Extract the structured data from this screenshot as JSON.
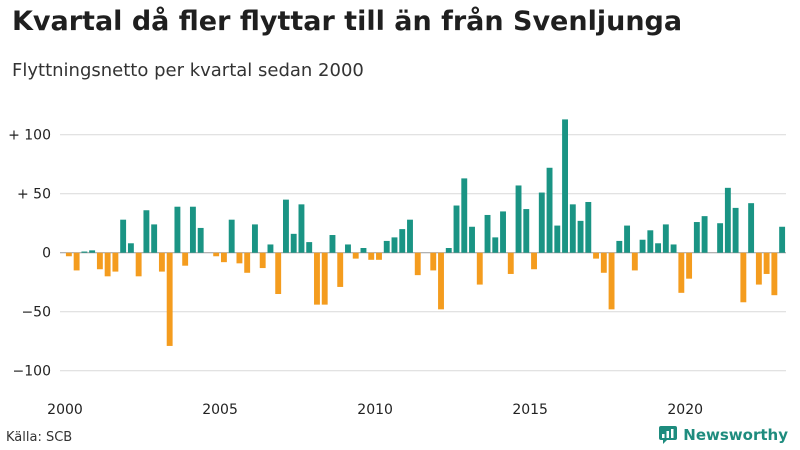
{
  "title": "Kvartal då fler flyttar till än från Svenljunga",
  "subtitle": "Flyttningsnetto per kvartal sedan 2000",
  "source": "Källa: SCB",
  "brand": {
    "name": "Newsworthy",
    "color": "#1e8c7e"
  },
  "colors": {
    "positive": "#1a9484",
    "negative": "#f49c1e",
    "grid": "#d9d9d9",
    "zero": "#999999"
  },
  "chart_data": {
    "type": "bar",
    "title": "Kvartal då fler flyttar till än från Svenljunga",
    "subtitle": "Flyttningsnetto per kvartal sedan 2000",
    "xlabel": "",
    "ylabel": "",
    "ylim": [
      -110,
      118
    ],
    "y_ticks": [
      {
        "value": 100,
        "label": "+ 100"
      },
      {
        "value": 50,
        "label": "+  50"
      },
      {
        "value": 0,
        "label": "0"
      },
      {
        "value": -50,
        "label": "−50"
      },
      {
        "value": -100,
        "label": "−100"
      }
    ],
    "x_ticks": [
      "2000",
      "2005",
      "2010",
      "2015",
      "2020"
    ],
    "grid": true,
    "legend": "none",
    "start": "2000 Q1",
    "values": [
      -3,
      -15,
      1,
      2,
      -14,
      -20,
      -16,
      28,
      8,
      -20,
      36,
      24,
      -16,
      -79,
      39,
      -11,
      39,
      21,
      0,
      -3,
      -8,
      28,
      -9,
      -17,
      24,
      -13,
      7,
      -35,
      45,
      16,
      41,
      9,
      -44,
      -44,
      15,
      -29,
      7,
      -5,
      4,
      -6,
      -6,
      10,
      13,
      20,
      28,
      -19,
      0,
      -15,
      -48,
      4,
      40,
      63,
      22,
      -27,
      32,
      13,
      35,
      -18,
      57,
      37,
      -14,
      51,
      72,
      23,
      113,
      41,
      27,
      43,
      -5,
      -17,
      -48,
      10,
      23,
      -15,
      11,
      19,
      8,
      24,
      7,
      -34,
      -22,
      26,
      31,
      0,
      25,
      55,
      38,
      -42,
      42,
      -27,
      -18,
      -36,
      22
    ]
  }
}
